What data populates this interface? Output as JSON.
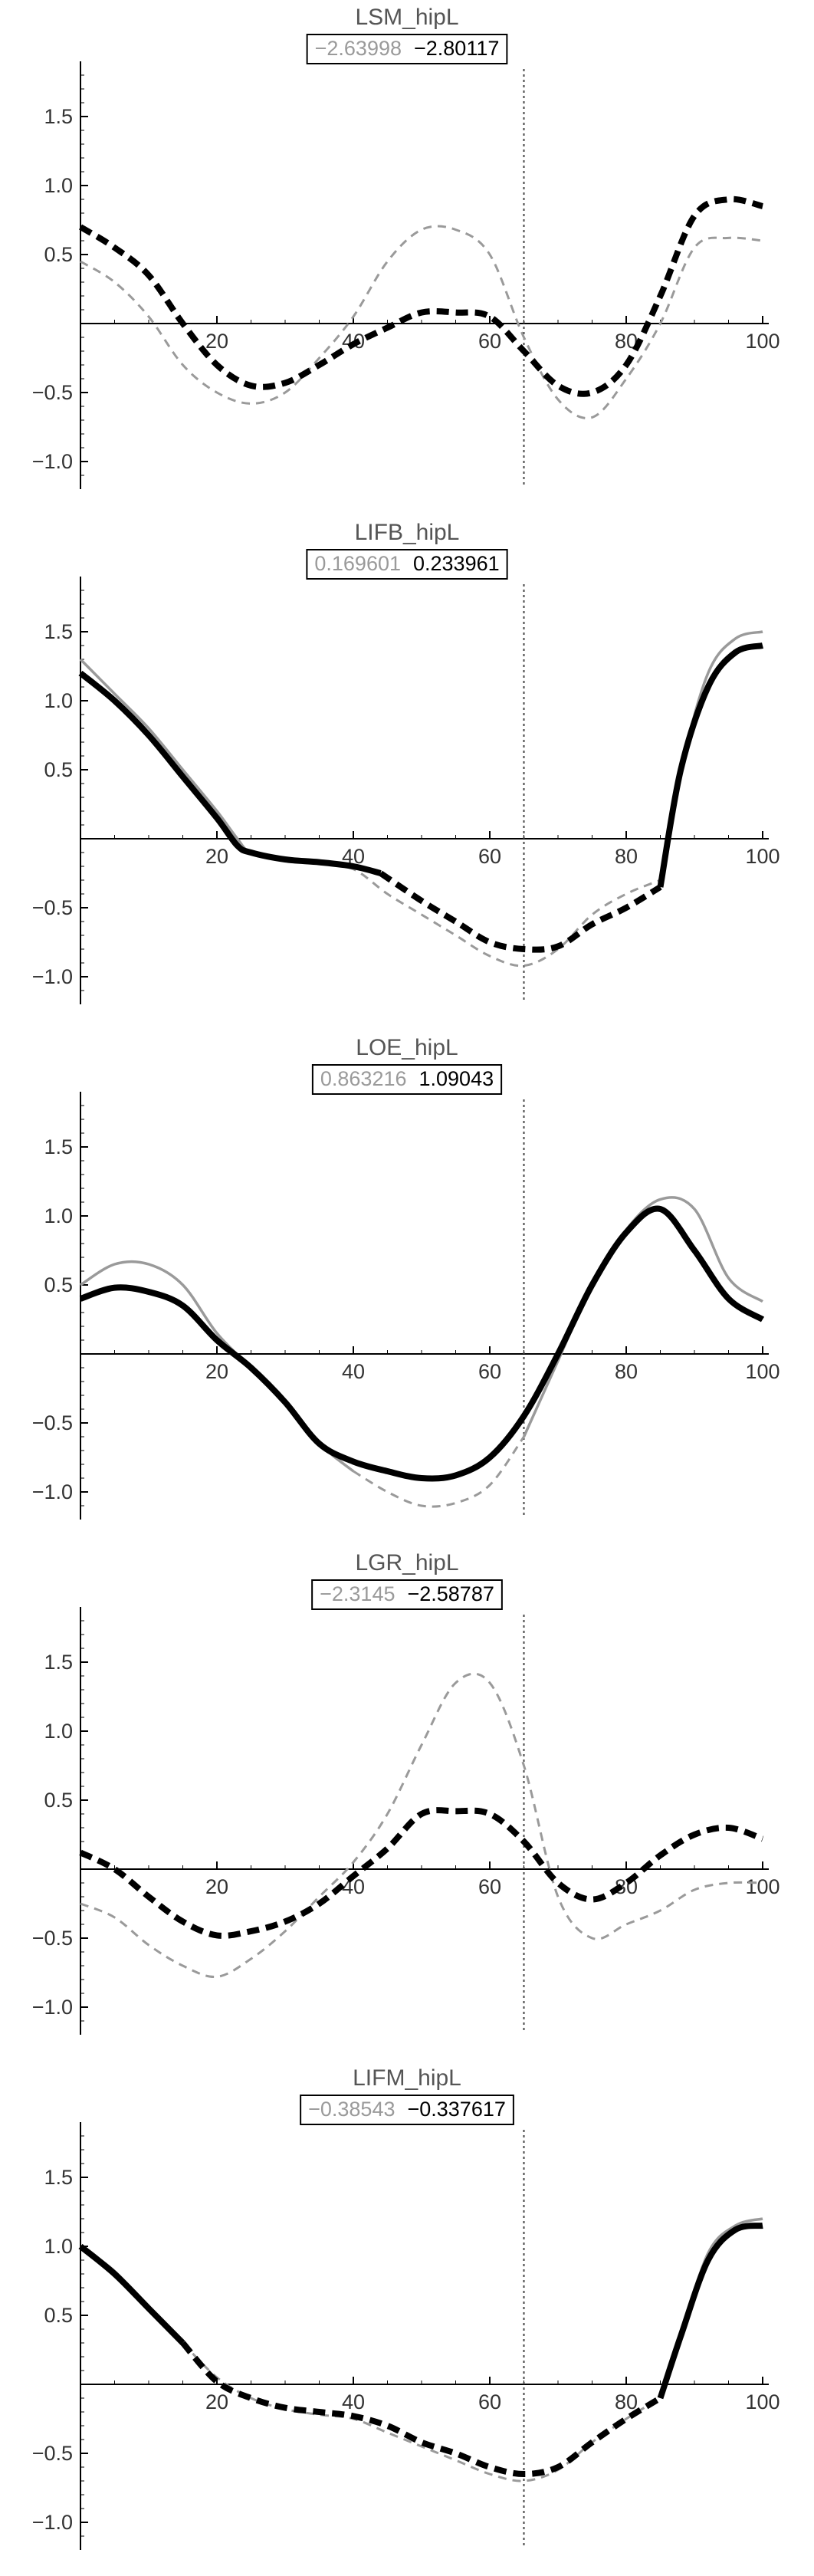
{
  "chart_data": [
    {
      "type": "line",
      "title": "LSM_hipL",
      "badge": [
        "−2.63998",
        "−2.80117"
      ],
      "xlim": [
        0,
        100
      ],
      "ylim": [
        -1.2,
        1.9
      ],
      "x_ticks": [
        20,
        40,
        60,
        80,
        100
      ],
      "y_ticks": [
        -1.0,
        -0.5,
        0.5,
        1.0,
        1.5
      ],
      "y_tick_labels": [
        "−1.0",
        "−0.5",
        "0.5",
        "1.0",
        "1.5"
      ],
      "marker_x": 65,
      "series": [
        {
          "style": "gray-dashed",
          "x": [
            0,
            5,
            10,
            15,
            20,
            25,
            30,
            35,
            40,
            45,
            50,
            55,
            60,
            65,
            70,
            75,
            80,
            85,
            90,
            95,
            100
          ],
          "values": [
            0.45,
            0.3,
            0.05,
            -0.3,
            -0.5,
            -0.58,
            -0.5,
            -0.25,
            0.05,
            0.45,
            0.68,
            0.68,
            0.5,
            -0.1,
            -0.55,
            -0.68,
            -0.4,
            0.0,
            0.55,
            0.62,
            0.6
          ]
        },
        {
          "style": "black-dashed-thick",
          "x": [
            0,
            5,
            10,
            15,
            20,
            25,
            30,
            35,
            40,
            45,
            50,
            55,
            60,
            65,
            70,
            75,
            80,
            85,
            90,
            95,
            100
          ],
          "values": [
            0.7,
            0.55,
            0.35,
            0.0,
            -0.3,
            -0.45,
            -0.43,
            -0.3,
            -0.15,
            -0.03,
            0.08,
            0.08,
            0.05,
            -0.2,
            -0.45,
            -0.5,
            -0.3,
            0.2,
            0.78,
            0.9,
            0.85
          ]
        }
      ]
    },
    {
      "type": "line",
      "title": "LIFB_hipL",
      "badge": [
        "0.169601",
        "0.233961"
      ],
      "xlim": [
        0,
        100
      ],
      "ylim": [
        -1.2,
        1.9
      ],
      "x_ticks": [
        20,
        40,
        60,
        80,
        100
      ],
      "y_ticks": [
        -1.0,
        -0.5,
        0.5,
        1.0,
        1.5
      ],
      "y_tick_labels": [
        "−1.0",
        "−0.5",
        "0.5",
        "1.0",
        "1.5"
      ],
      "marker_x": 65,
      "series": [
        {
          "style": "gray-segments",
          "segments": [
            {
              "dashed": false,
              "x": [
                0,
                5,
                10,
                15,
                20,
                23,
                25,
                30,
                35
              ],
              "values": [
                1.3,
                1.05,
                0.8,
                0.5,
                0.2,
                0.0,
                -0.1,
                -0.15,
                -0.18
              ]
            },
            {
              "dashed": true,
              "x": [
                35,
                40,
                45,
                50,
                55,
                60,
                65,
                70,
                75,
                80,
                85
              ],
              "values": [
                -0.18,
                -0.22,
                -0.4,
                -0.55,
                -0.7,
                -0.85,
                -0.92,
                -0.8,
                -0.55,
                -0.4,
                -0.3
              ]
            },
            {
              "dashed": false,
              "x": [
                85,
                88,
                92,
                96,
                100
              ],
              "values": [
                -0.3,
                0.5,
                1.2,
                1.45,
                1.5
              ]
            }
          ]
        },
        {
          "style": "black-segments",
          "segments": [
            {
              "dashed": false,
              "x": [
                0,
                5,
                10,
                15,
                20,
                23,
                25,
                30,
                35,
                40,
                44
              ],
              "values": [
                1.2,
                1.0,
                0.75,
                0.45,
                0.15,
                -0.05,
                -0.1,
                -0.15,
                -0.17,
                -0.2,
                -0.25
              ]
            },
            {
              "dashed": true,
              "x": [
                44,
                50,
                55,
                60,
                65,
                70,
                75,
                80,
                85
              ],
              "values": [
                -0.25,
                -0.45,
                -0.6,
                -0.75,
                -0.8,
                -0.78,
                -0.62,
                -0.5,
                -0.35
              ]
            },
            {
              "dashed": false,
              "x": [
                85,
                88,
                92,
                96,
                100
              ],
              "values": [
                -0.35,
                0.5,
                1.1,
                1.35,
                1.4
              ]
            }
          ]
        }
      ]
    },
    {
      "type": "line",
      "title": "LOE_hipL",
      "badge": [
        "0.863216",
        "1.09043"
      ],
      "xlim": [
        0,
        100
      ],
      "ylim": [
        -1.2,
        1.9
      ],
      "x_ticks": [
        20,
        40,
        60,
        80,
        100
      ],
      "y_ticks": [
        -1.0,
        -0.5,
        0.5,
        1.0,
        1.5
      ],
      "y_tick_labels": [
        "−1.0",
        "−0.5",
        "0.5",
        "1.0",
        "1.5"
      ],
      "marker_x": 65,
      "series": [
        {
          "style": "gray-segments",
          "segments": [
            {
              "dashed": false,
              "x": [
                0,
                5,
                10,
                15,
                20,
                25,
                30,
                35,
                40
              ],
              "values": [
                0.5,
                0.65,
                0.65,
                0.5,
                0.15,
                -0.1,
                -0.35,
                -0.65,
                -0.85
              ]
            },
            {
              "dashed": true,
              "x": [
                40,
                45,
                50,
                55,
                60,
                65
              ],
              "values": [
                -0.85,
                -1.0,
                -1.1,
                -1.08,
                -0.95,
                -0.6
              ]
            },
            {
              "dashed": false,
              "x": [
                65,
                70,
                75,
                80,
                85,
                90,
                95,
                100
              ],
              "values": [
                -0.6,
                -0.05,
                0.5,
                0.9,
                1.12,
                1.05,
                0.55,
                0.38
              ]
            }
          ]
        },
        {
          "style": "black-solid-thick",
          "x": [
            0,
            5,
            10,
            15,
            20,
            25,
            30,
            35,
            40,
            45,
            50,
            55,
            60,
            65,
            70,
            75,
            80,
            85,
            90,
            95,
            100
          ],
          "values": [
            0.4,
            0.48,
            0.45,
            0.35,
            0.1,
            -0.1,
            -0.35,
            -0.65,
            -0.78,
            -0.85,
            -0.9,
            -0.88,
            -0.75,
            -0.45,
            0.0,
            0.5,
            0.88,
            1.05,
            0.75,
            0.4,
            0.25
          ]
        }
      ]
    },
    {
      "type": "line",
      "title": "LGR_hipL",
      "badge": [
        "−2.3145",
        "−2.58787"
      ],
      "xlim": [
        0,
        100
      ],
      "ylim": [
        -1.2,
        1.9
      ],
      "x_ticks": [
        20,
        40,
        60,
        80,
        100
      ],
      "y_ticks": [
        -1.0,
        -0.5,
        0.5,
        1.0,
        1.5
      ],
      "y_tick_labels": [
        "−1.0",
        "−0.5",
        "0.5",
        "1.0",
        "1.5"
      ],
      "marker_x": 65,
      "series": [
        {
          "style": "gray-dashed",
          "x": [
            0,
            5,
            10,
            15,
            20,
            25,
            30,
            35,
            40,
            45,
            50,
            55,
            60,
            65,
            70,
            75,
            80,
            85,
            90,
            95,
            100
          ],
          "values": [
            -0.25,
            -0.35,
            -0.55,
            -0.7,
            -0.78,
            -0.65,
            -0.45,
            -0.2,
            0.05,
            0.4,
            0.9,
            1.35,
            1.35,
            0.75,
            -0.2,
            -0.5,
            -0.4,
            -0.3,
            -0.15,
            -0.1,
            -0.1
          ]
        },
        {
          "style": "black-dashed-thick",
          "x": [
            0,
            5,
            10,
            15,
            20,
            25,
            30,
            35,
            40,
            45,
            50,
            55,
            60,
            65,
            70,
            75,
            80,
            85,
            90,
            95,
            100
          ],
          "values": [
            0.12,
            0.0,
            -0.2,
            -0.38,
            -0.48,
            -0.45,
            -0.38,
            -0.25,
            -0.05,
            0.15,
            0.4,
            0.42,
            0.4,
            0.2,
            -0.1,
            -0.22,
            -0.1,
            0.1,
            0.25,
            0.3,
            0.22
          ]
        }
      ]
    },
    {
      "type": "line",
      "title": "LIFM_hipL",
      "badge": [
        "−0.38543",
        "−0.337617"
      ],
      "xlim": [
        0,
        100
      ],
      "ylim": [
        -1.2,
        1.9
      ],
      "x_ticks": [
        20,
        40,
        60,
        80,
        100
      ],
      "y_ticks": [
        -1.0,
        -0.5,
        0.5,
        1.0,
        1.5
      ],
      "y_tick_labels": [
        "−1.0",
        "−0.5",
        "0.5",
        "1.0",
        "1.5"
      ],
      "marker_x": 65,
      "series": [
        {
          "style": "gray-segments",
          "segments": [
            {
              "dashed": false,
              "x": [
                0,
                5,
                10,
                15
              ],
              "values": [
                1.0,
                0.82,
                0.55,
                0.3
              ]
            },
            {
              "dashed": true,
              "x": [
                15,
                20,
                25,
                30,
                35,
                40,
                45,
                50,
                55,
                60,
                65,
                70,
                75,
                80,
                85
              ],
              "values": [
                0.3,
                0.05,
                -0.1,
                -0.18,
                -0.22,
                -0.25,
                -0.35,
                -0.45,
                -0.55,
                -0.65,
                -0.7,
                -0.62,
                -0.42,
                -0.25,
                -0.1
              ]
            },
            {
              "dashed": false,
              "x": [
                85,
                88,
                92,
                96,
                100
              ],
              "values": [
                -0.1,
                0.35,
                0.95,
                1.15,
                1.2
              ]
            }
          ]
        },
        {
          "style": "black-segments",
          "segments": [
            {
              "dashed": false,
              "x": [
                0,
                5,
                10,
                15
              ],
              "values": [
                1.0,
                0.8,
                0.55,
                0.3
              ]
            },
            {
              "dashed": true,
              "x": [
                15,
                20,
                25,
                30,
                35,
                40,
                45,
                50,
                55,
                60,
                65,
                70,
                75,
                80,
                85
              ],
              "values": [
                0.3,
                0.02,
                -0.1,
                -0.17,
                -0.2,
                -0.23,
                -0.3,
                -0.42,
                -0.5,
                -0.6,
                -0.65,
                -0.6,
                -0.42,
                -0.25,
                -0.1
              ]
            },
            {
              "dashed": false,
              "x": [
                85,
                88,
                92,
                96,
                100
              ],
              "values": [
                -0.1,
                0.35,
                0.9,
                1.12,
                1.15
              ]
            }
          ]
        }
      ]
    }
  ]
}
